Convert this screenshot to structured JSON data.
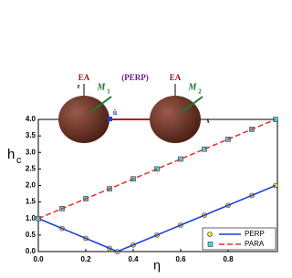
{
  "chart_data": {
    "type": "line",
    "x_label": "η",
    "y_label": "h",
    "y_label_subscript": "c",
    "xlim": [
      0,
      1
    ],
    "ylim": [
      0,
      4
    ],
    "xticks": [
      {
        "value": 0,
        "label": "0.0"
      },
      0.2,
      0.4,
      0.6,
      0.8
    ],
    "yticks": [
      {
        "value": 0,
        "label": "0.0"
      },
      0.5,
      {
        "value": 1,
        "label": "1.0"
      },
      1.5,
      {
        "value": 2,
        "label": "2.0"
      },
      2.5,
      {
        "value": 3,
        "label": "3.0"
      },
      3.5,
      {
        "value": 4,
        "label": "4.0"
      }
    ],
    "legend_position": "lower right",
    "series": [
      {
        "name": "PERP",
        "color": "#1f3fd6",
        "marker": "circle",
        "marker_color": "#f0e040",
        "dashed": false,
        "x": [
          0,
          0.1,
          0.2,
          0.3,
          0.333,
          0.4,
          0.5,
          0.6,
          0.7,
          0.8,
          0.9,
          1.0
        ],
        "values": [
          1,
          0.7,
          0.4,
          0.1,
          0,
          0.2,
          0.5,
          0.8,
          1.1,
          1.4,
          1.7,
          2.0
        ]
      },
      {
        "name": "PARA",
        "color": "#e03030",
        "marker": "square",
        "marker_color": "#40d8e0",
        "dashed": true,
        "x": [
          0,
          0.1,
          0.2,
          0.3,
          0.4,
          0.5,
          0.6,
          0.7,
          0.8,
          0.9,
          1.0
        ],
        "values": [
          1,
          1.3,
          1.6,
          1.9,
          2.2,
          2.5,
          2.8,
          3.1,
          3.4,
          3.7,
          4.0
        ]
      }
    ],
    "annotations": [
      "EA",
      "EA",
      "(PERP)",
      "M",
      "1",
      "M",
      "2",
      "z",
      "x",
      "û"
    ]
  }
}
